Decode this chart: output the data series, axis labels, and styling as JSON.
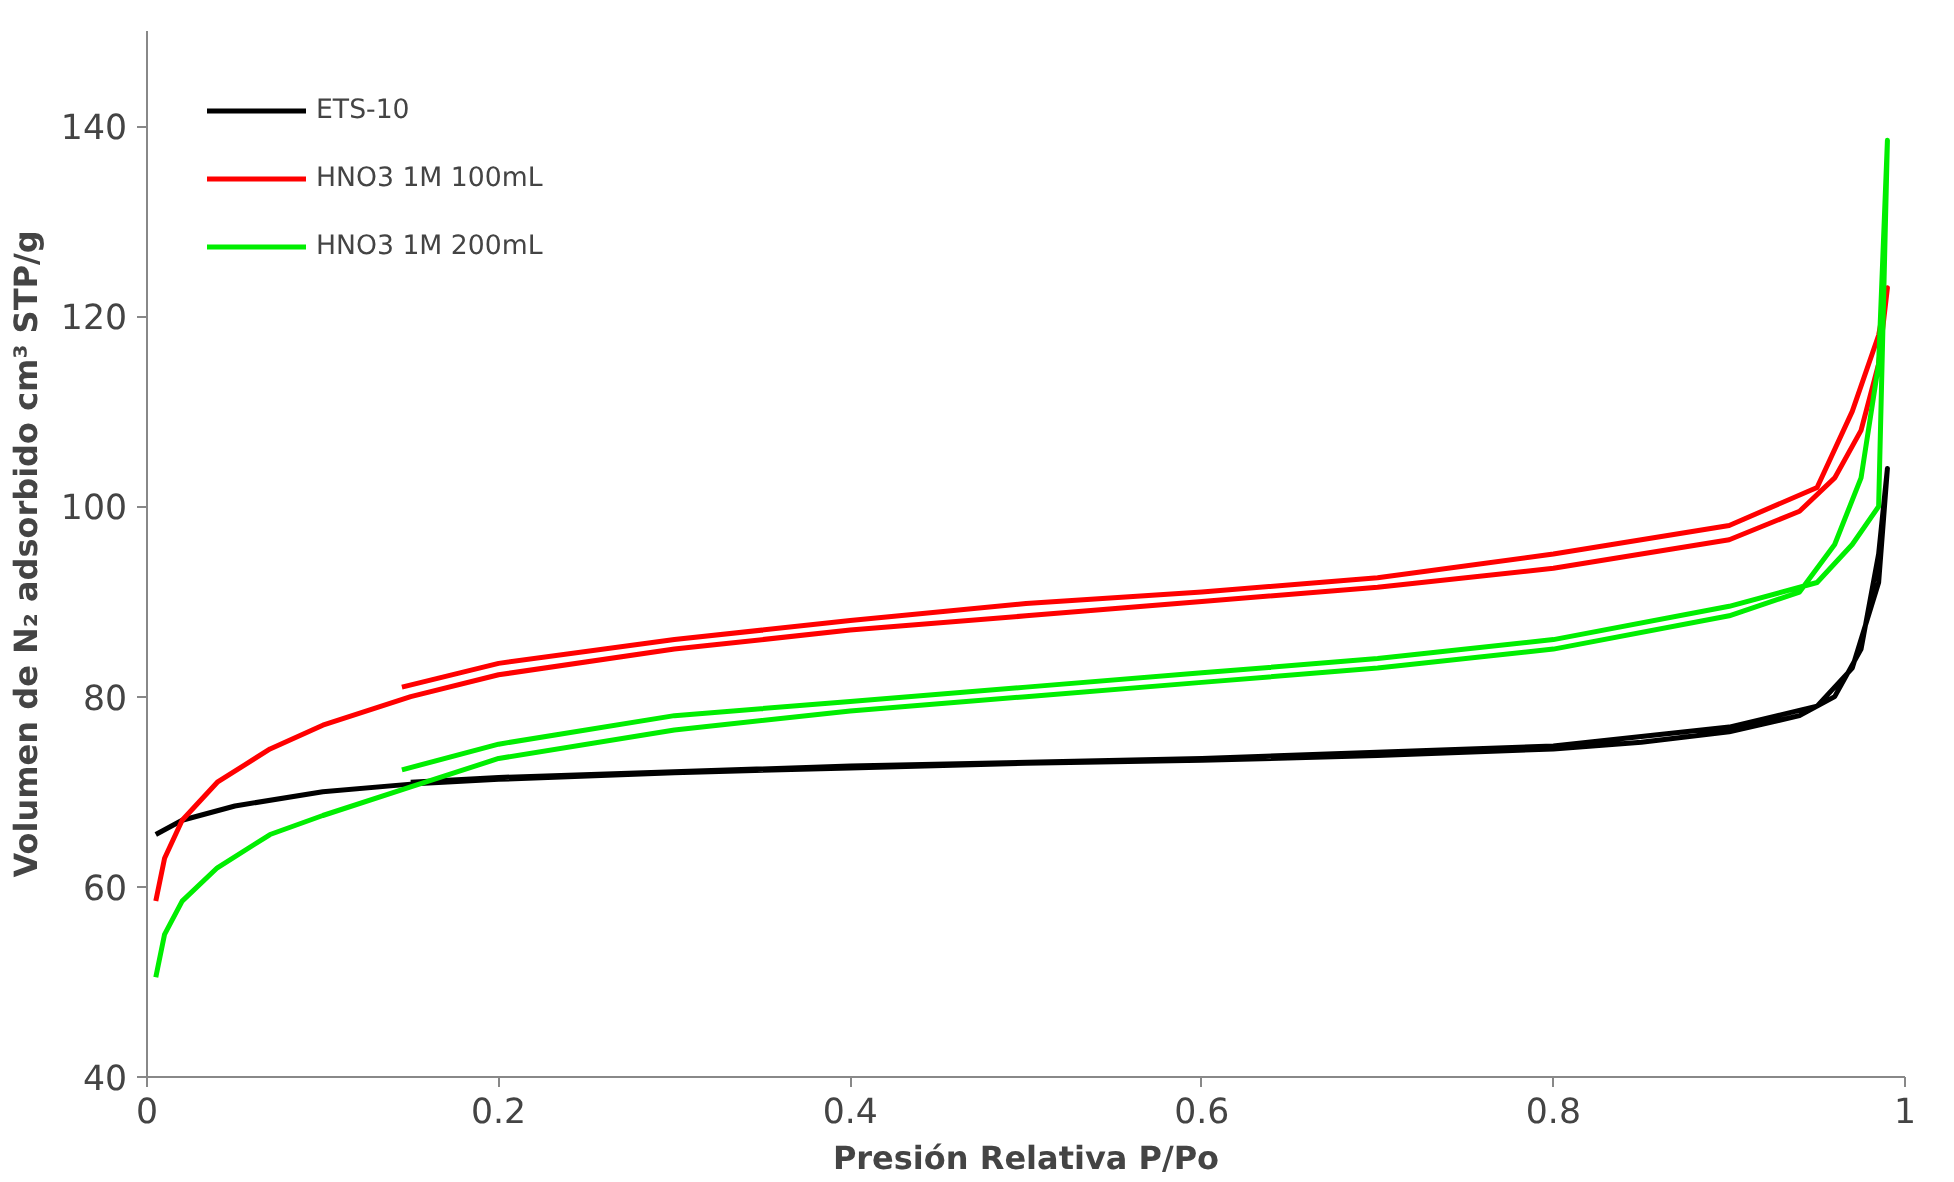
{
  "chart_data": {
    "type": "line",
    "xlabel": "Presión Relativa P/Po",
    "ylabel": "Volumen de N₂ adsorbido cm³ STP/g",
    "xlim": [
      0,
      1
    ],
    "ylim": [
      40,
      150
    ],
    "xticks": [
      0,
      0.2,
      0.4,
      0.6,
      0.8,
      1
    ],
    "yticks": [
      40,
      60,
      80,
      100,
      120,
      140
    ],
    "grid": false,
    "legend": "top left",
    "marker": "none",
    "line_style": "solid",
    "series": [
      {
        "name": "ETS-10",
        "color": "#000000",
        "x": [
          0.005,
          0.02,
          0.05,
          0.1,
          0.15,
          0.2,
          0.3,
          0.4,
          0.5,
          0.6,
          0.7,
          0.8,
          0.85,
          0.9,
          0.94,
          0.96,
          0.975,
          0.985,
          0.99,
          0.985,
          0.97,
          0.95,
          0.9,
          0.8,
          0.6,
          0.4,
          0.2,
          0.15
        ],
        "values": [
          65.5,
          67,
          68.5,
          70,
          70.8,
          71.3,
          72,
          72.5,
          73,
          73.3,
          73.8,
          74.5,
          75.2,
          76.3,
          78,
          80,
          85,
          95,
          104,
          92,
          83,
          79,
          76.8,
          74.8,
          73.5,
          72.7,
          71.5,
          71
        ]
      },
      {
        "name": "HNO3 1M 100mL",
        "color": "#ff0000",
        "x": [
          0.005,
          0.01,
          0.02,
          0.04,
          0.07,
          0.1,
          0.15,
          0.2,
          0.3,
          0.4,
          0.5,
          0.6,
          0.7,
          0.8,
          0.9,
          0.94,
          0.96,
          0.975,
          0.985,
          0.99,
          0.985,
          0.97,
          0.95,
          0.9,
          0.8,
          0.7,
          0.6,
          0.5,
          0.4,
          0.3,
          0.2,
          0.145
        ],
        "values": [
          58.5,
          63,
          67,
          71,
          74.5,
          77,
          80,
          82.3,
          85,
          87,
          88.5,
          90,
          91.5,
          93.5,
          96.5,
          99.5,
          103,
          108,
          115,
          123,
          118,
          110,
          102,
          98,
          95,
          92.5,
          91,
          89.8,
          88,
          86,
          83.5,
          81
        ]
      },
      {
        "name": "HNO3 1M 200mL",
        "color": "#00ee00",
        "x": [
          0.005,
          0.01,
          0.02,
          0.04,
          0.07,
          0.1,
          0.15,
          0.2,
          0.3,
          0.4,
          0.5,
          0.6,
          0.7,
          0.8,
          0.9,
          0.94,
          0.96,
          0.975,
          0.985,
          0.99,
          0.985,
          0.97,
          0.95,
          0.9,
          0.8,
          0.7,
          0.6,
          0.5,
          0.4,
          0.3,
          0.2,
          0.145
        ],
        "values": [
          50.5,
          55,
          58.5,
          62,
          65.5,
          67.5,
          70.5,
          73.5,
          76.5,
          78.5,
          80,
          81.5,
          83,
          85,
          88.5,
          91,
          96,
          103,
          115,
          138.5,
          100,
          96,
          92,
          89.5,
          86,
          84,
          82.5,
          81,
          79.5,
          78,
          75,
          72.3
        ]
      }
    ]
  }
}
